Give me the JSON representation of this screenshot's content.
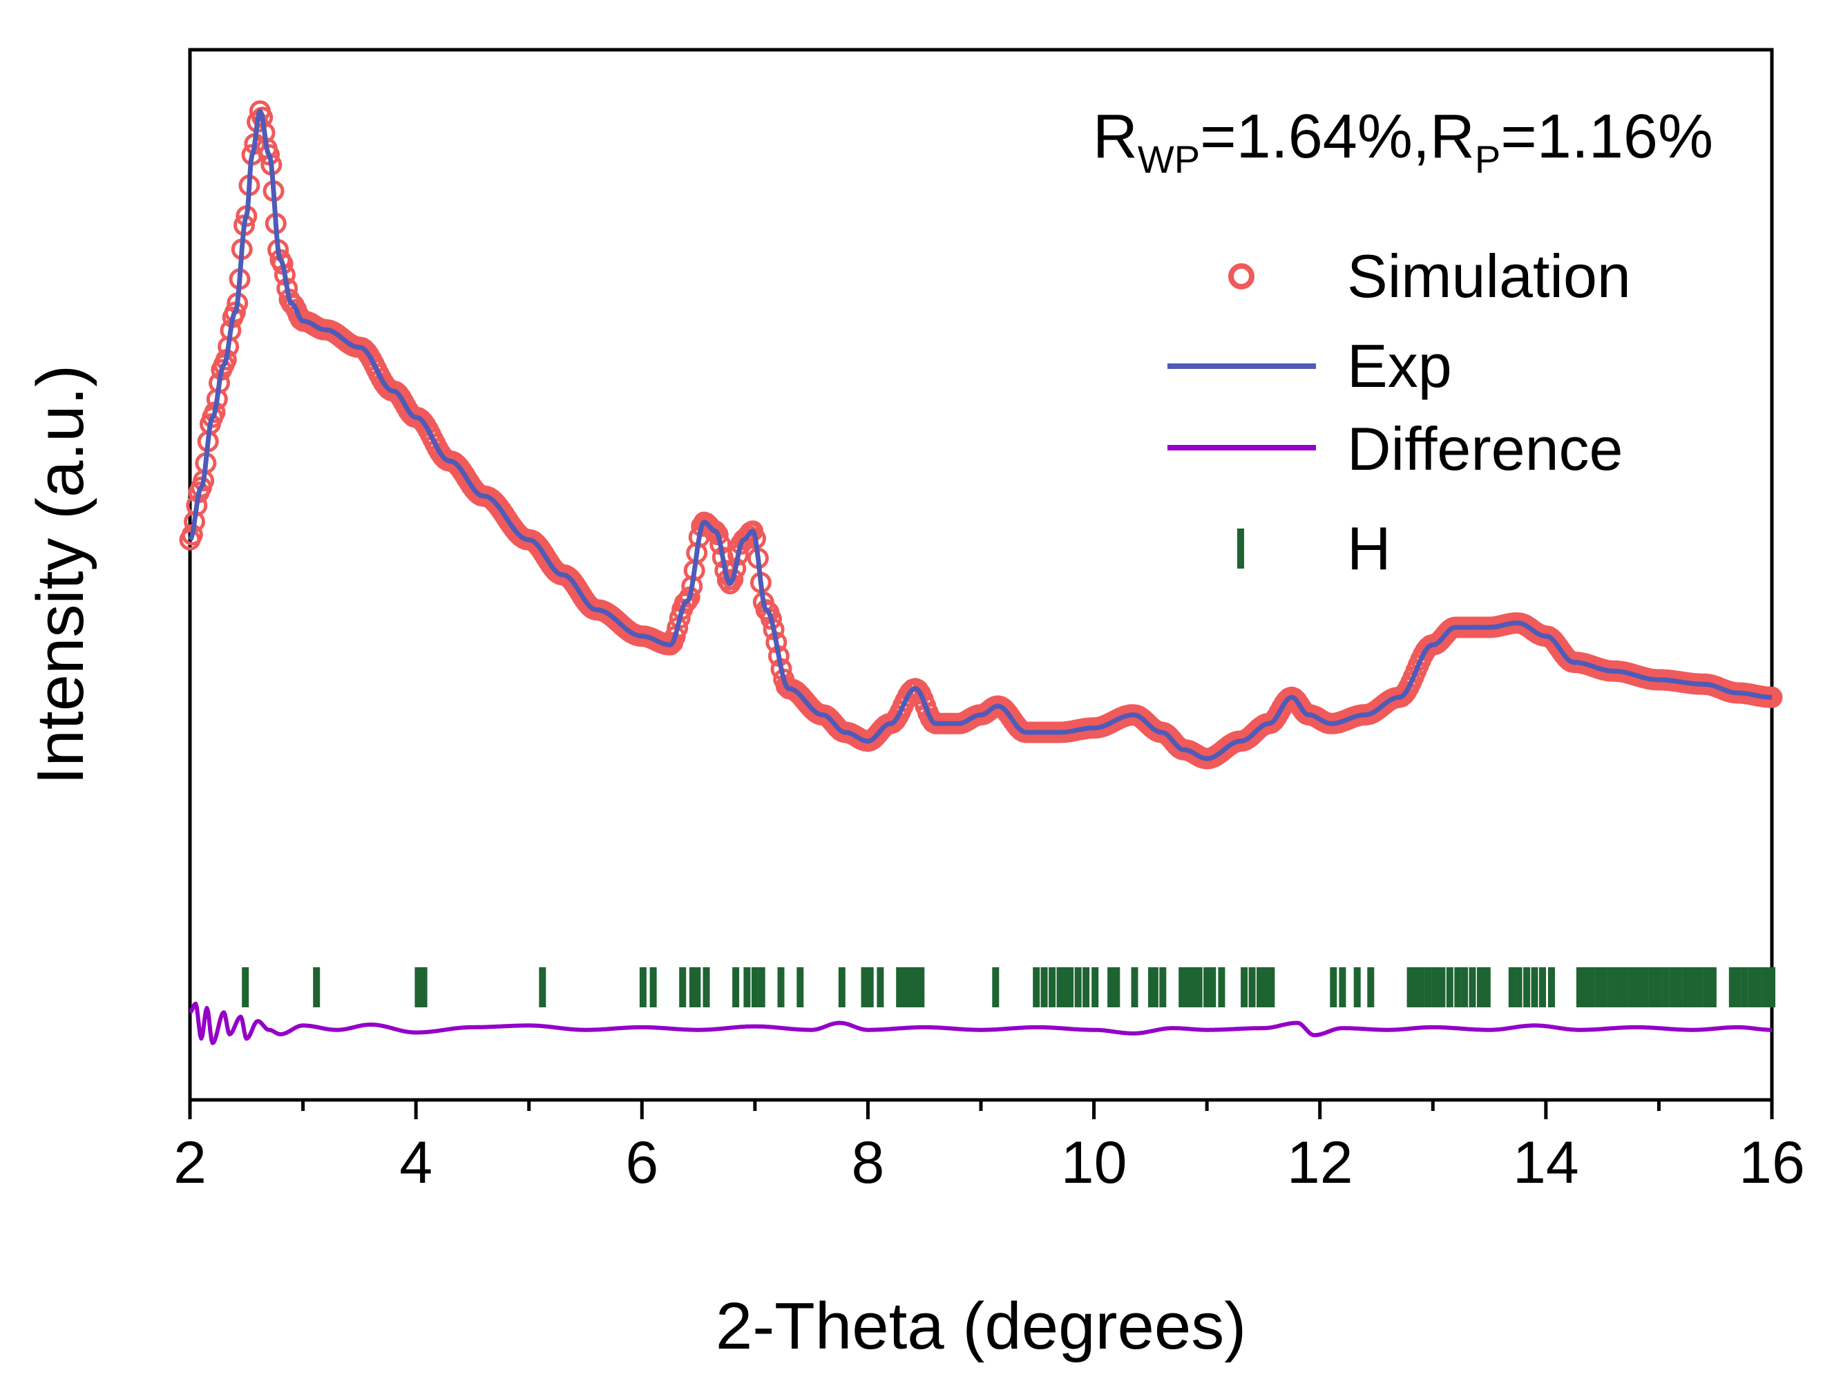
{
  "chart_data": {
    "type": "line",
    "xlabel": "2-Theta (degrees)",
    "ylabel": "Intensity (a.u.)",
    "xlim": [
      2,
      16
    ],
    "ylim": [
      -0.08,
      1.12
    ],
    "x_ticks": [
      "2",
      "4",
      "6",
      "8",
      "10",
      "12",
      "14",
      "16"
    ],
    "y_ticks": [],
    "grid": false,
    "legend_position": "top-right",
    "annotation": {
      "R_label": "R",
      "wp_sub": "WP",
      "wp_value": "=1.64%,",
      "p_sub": "P",
      "p_value": "=1.16%"
    },
    "series": [
      {
        "name": "Simulation",
        "style": "open-circles",
        "color": "#f05a5a",
        "points": [
          [
            2.0,
            0.56
          ],
          [
            2.1,
            0.62
          ],
          [
            2.2,
            0.7
          ],
          [
            2.3,
            0.76
          ],
          [
            2.4,
            0.82
          ],
          [
            2.5,
            0.93
          ],
          [
            2.55,
            1.0
          ],
          [
            2.62,
            1.05
          ],
          [
            2.7,
            1.0
          ],
          [
            2.8,
            0.88
          ],
          [
            2.9,
            0.83
          ],
          [
            3.0,
            0.81
          ],
          [
            3.2,
            0.8
          ],
          [
            3.5,
            0.78
          ],
          [
            3.8,
            0.73
          ],
          [
            4.0,
            0.7
          ],
          [
            4.3,
            0.65
          ],
          [
            4.6,
            0.61
          ],
          [
            5.0,
            0.56
          ],
          [
            5.3,
            0.52
          ],
          [
            5.6,
            0.48
          ],
          [
            6.0,
            0.45
          ],
          [
            6.25,
            0.44
          ],
          [
            6.4,
            0.49
          ],
          [
            6.55,
            0.58
          ],
          [
            6.65,
            0.57
          ],
          [
            6.78,
            0.51
          ],
          [
            6.9,
            0.56
          ],
          [
            6.98,
            0.57
          ],
          [
            7.1,
            0.48
          ],
          [
            7.3,
            0.39
          ],
          [
            7.6,
            0.36
          ],
          [
            7.8,
            0.34
          ],
          [
            8.0,
            0.33
          ],
          [
            8.2,
            0.35
          ],
          [
            8.42,
            0.39
          ],
          [
            8.6,
            0.35
          ],
          [
            8.8,
            0.35
          ],
          [
            9.0,
            0.36
          ],
          [
            9.15,
            0.37
          ],
          [
            9.4,
            0.34
          ],
          [
            9.7,
            0.34
          ],
          [
            10.0,
            0.345
          ],
          [
            10.35,
            0.36
          ],
          [
            10.6,
            0.34
          ],
          [
            10.8,
            0.32
          ],
          [
            11.0,
            0.31
          ],
          [
            11.3,
            0.33
          ],
          [
            11.55,
            0.35
          ],
          [
            11.75,
            0.38
          ],
          [
            11.9,
            0.36
          ],
          [
            12.1,
            0.35
          ],
          [
            12.4,
            0.36
          ],
          [
            12.7,
            0.38
          ],
          [
            13.0,
            0.44
          ],
          [
            13.2,
            0.46
          ],
          [
            13.5,
            0.46
          ],
          [
            13.75,
            0.465
          ],
          [
            14.0,
            0.45
          ],
          [
            14.25,
            0.42
          ],
          [
            14.6,
            0.41
          ],
          [
            15.0,
            0.4
          ],
          [
            15.4,
            0.395
          ],
          [
            15.7,
            0.385
          ],
          [
            16.0,
            0.38
          ]
        ]
      },
      {
        "name": "Exp",
        "style": "line",
        "color": "#4f5bb8",
        "points": [
          [
            2.0,
            0.56
          ],
          [
            2.1,
            0.62
          ],
          [
            2.2,
            0.7
          ],
          [
            2.3,
            0.76
          ],
          [
            2.4,
            0.82
          ],
          [
            2.5,
            0.93
          ],
          [
            2.55,
            1.0
          ],
          [
            2.62,
            1.05
          ],
          [
            2.7,
            1.0
          ],
          [
            2.8,
            0.88
          ],
          [
            2.9,
            0.83
          ],
          [
            3.0,
            0.81
          ],
          [
            3.2,
            0.8
          ],
          [
            3.5,
            0.78
          ],
          [
            3.8,
            0.73
          ],
          [
            4.0,
            0.7
          ],
          [
            4.3,
            0.65
          ],
          [
            4.6,
            0.61
          ],
          [
            5.0,
            0.56
          ],
          [
            5.3,
            0.52
          ],
          [
            5.6,
            0.48
          ],
          [
            6.0,
            0.45
          ],
          [
            6.25,
            0.44
          ],
          [
            6.4,
            0.49
          ],
          [
            6.55,
            0.58
          ],
          [
            6.65,
            0.57
          ],
          [
            6.78,
            0.51
          ],
          [
            6.9,
            0.56
          ],
          [
            6.98,
            0.57
          ],
          [
            7.1,
            0.48
          ],
          [
            7.3,
            0.39
          ],
          [
            7.6,
            0.36
          ],
          [
            7.8,
            0.34
          ],
          [
            8.0,
            0.33
          ],
          [
            8.2,
            0.35
          ],
          [
            8.42,
            0.39
          ],
          [
            8.6,
            0.35
          ],
          [
            8.8,
            0.35
          ],
          [
            9.0,
            0.36
          ],
          [
            9.15,
            0.37
          ],
          [
            9.4,
            0.34
          ],
          [
            9.7,
            0.34
          ],
          [
            10.0,
            0.345
          ],
          [
            10.35,
            0.36
          ],
          [
            10.6,
            0.34
          ],
          [
            10.8,
            0.32
          ],
          [
            11.0,
            0.31
          ],
          [
            11.3,
            0.33
          ],
          [
            11.55,
            0.35
          ],
          [
            11.75,
            0.38
          ],
          [
            11.9,
            0.36
          ],
          [
            12.1,
            0.35
          ],
          [
            12.4,
            0.36
          ],
          [
            12.7,
            0.38
          ],
          [
            13.0,
            0.44
          ],
          [
            13.2,
            0.46
          ],
          [
            13.5,
            0.46
          ],
          [
            13.75,
            0.465
          ],
          [
            14.0,
            0.45
          ],
          [
            14.25,
            0.42
          ],
          [
            14.6,
            0.41
          ],
          [
            15.0,
            0.4
          ],
          [
            15.4,
            0.395
          ],
          [
            15.7,
            0.385
          ],
          [
            16.0,
            0.38
          ]
        ]
      },
      {
        "name": "Difference",
        "style": "line",
        "color": "#9400c8",
        "points": [
          [
            2.0,
            0.02
          ],
          [
            2.05,
            0.03
          ],
          [
            2.1,
            -0.01
          ],
          [
            2.15,
            0.025
          ],
          [
            2.2,
            -0.015
          ],
          [
            2.3,
            0.02
          ],
          [
            2.35,
            -0.005
          ],
          [
            2.45,
            0.015
          ],
          [
            2.5,
            -0.01
          ],
          [
            2.6,
            0.01
          ],
          [
            2.7,
            0.0
          ],
          [
            2.8,
            -0.005
          ],
          [
            3.0,
            0.005
          ],
          [
            3.3,
            0.0
          ],
          [
            3.6,
            0.006
          ],
          [
            4.0,
            -0.003
          ],
          [
            4.5,
            0.003
          ],
          [
            5.0,
            0.005
          ],
          [
            5.5,
            0.0
          ],
          [
            6.0,
            0.003
          ],
          [
            6.5,
            0.0
          ],
          [
            7.0,
            0.004
          ],
          [
            7.5,
            0.0
          ],
          [
            7.75,
            0.008
          ],
          [
            8.0,
            0.0
          ],
          [
            8.5,
            0.003
          ],
          [
            9.0,
            0.0
          ],
          [
            9.5,
            0.003
          ],
          [
            10.0,
            0.0
          ],
          [
            10.35,
            -0.004
          ],
          [
            10.7,
            0.002
          ],
          [
            11.0,
            0.0
          ],
          [
            11.5,
            0.002
          ],
          [
            11.8,
            0.008
          ],
          [
            11.95,
            -0.006
          ],
          [
            12.2,
            0.002
          ],
          [
            12.6,
            0.0
          ],
          [
            13.0,
            0.003
          ],
          [
            13.5,
            0.0
          ],
          [
            13.9,
            0.005
          ],
          [
            14.3,
            0.0
          ],
          [
            14.8,
            0.003
          ],
          [
            15.3,
            0.0
          ],
          [
            15.7,
            0.003
          ],
          [
            16.0,
            0.0
          ]
        ]
      }
    ],
    "reflections": {
      "name": "H",
      "style": "tick-marks",
      "color": "#1e6432",
      "x": [
        2.49,
        3.12,
        4.02,
        4.07,
        5.12,
        6.01,
        6.1,
        6.36,
        6.45,
        6.49,
        6.57,
        6.83,
        6.93,
        7.0,
        7.06,
        7.23,
        7.4,
        7.77,
        7.97,
        8.02,
        8.11,
        8.28,
        8.34,
        8.38,
        8.42,
        8.47,
        9.13,
        9.49,
        9.56,
        9.63,
        9.7,
        9.74,
        9.79,
        9.86,
        9.93,
        10.01,
        10.15,
        10.2,
        10.36,
        10.51,
        10.54,
        10.61,
        10.78,
        10.82,
        10.88,
        10.93,
        11.0,
        11.05,
        11.13,
        11.33,
        11.4,
        11.47,
        11.52,
        11.57,
        12.12,
        12.2,
        12.33,
        12.45,
        12.8,
        12.85,
        12.9,
        12.96,
        13.02,
        13.08,
        13.15,
        13.22,
        13.28,
        13.35,
        13.42,
        13.48,
        13.7,
        13.76,
        13.83,
        13.9,
        13.97,
        14.05,
        14.3,
        14.35,
        14.4,
        14.46,
        14.52,
        14.58,
        14.64,
        14.7,
        14.76,
        14.82,
        14.88,
        14.94,
        15.0,
        15.06,
        15.12,
        15.18,
        15.24,
        15.3,
        15.36,
        15.42,
        15.48,
        15.65,
        15.7,
        15.76,
        15.82,
        15.88,
        15.94,
        16.0
      ]
    }
  }
}
